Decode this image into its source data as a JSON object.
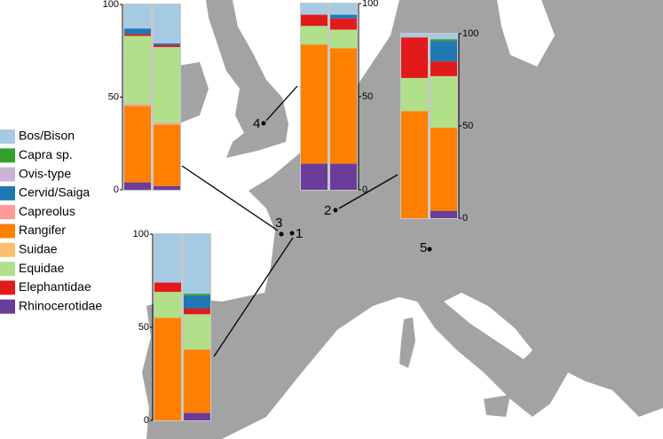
{
  "legend": [
    {
      "name": "Bos/Bison",
      "color": "#a6cae3"
    },
    {
      "name": "Capra sp.",
      "color": "#33a02c"
    },
    {
      "name": "Ovis-type",
      "color": "#cab2d6"
    },
    {
      "name": "Cervid/Saiga",
      "color": "#1f78b4"
    },
    {
      "name": "Capreolus",
      "color": "#fb9a99"
    },
    {
      "name": "Rangifer",
      "color": "#ff7f00"
    },
    {
      "name": "Suidae",
      "color": "#fdbf6f"
    },
    {
      "name": "Equidae",
      "color": "#b2df8a"
    },
    {
      "name": "Elephantidae",
      "color": "#e31a1c"
    },
    {
      "name": "Rhinocerotidae",
      "color": "#6a3d9a"
    }
  ],
  "sites": [
    "1",
    "2",
    "3",
    "4",
    "5"
  ],
  "chart_data": [
    {
      "type": "bar",
      "stacked": true,
      "ylim": [
        0,
        100
      ],
      "yticks": [
        0,
        50,
        100
      ],
      "series": [
        {
          "values": [
            13,
            21
          ]
        },
        {
          "values": [
            0,
            0
          ]
        },
        {
          "values": [
            0,
            0
          ]
        },
        {
          "values": [
            3,
            1
          ]
        },
        {
          "values": [
            1,
            1
          ]
        },
        {
          "values": [
            41,
            33
          ]
        },
        {
          "values": [
            0,
            0
          ]
        },
        {
          "values": [
            37,
            41
          ]
        },
        {
          "values": [
            1,
            1
          ]
        },
        {
          "values": [
            4,
            2
          ]
        }
      ]
    },
    {
      "type": "bar",
      "stacked": true,
      "ylim": [
        0,
        100
      ],
      "yticks": [
        0,
        50,
        100
      ],
      "series": [
        {
          "values": [
            6,
            6
          ]
        },
        {
          "values": [
            0,
            0
          ]
        },
        {
          "values": [
            0,
            0
          ]
        },
        {
          "values": [
            0,
            2
          ]
        },
        {
          "values": [
            0,
            0
          ]
        },
        {
          "values": [
            64,
            62
          ]
        },
        {
          "values": [
            0,
            0
          ]
        },
        {
          "values": [
            10,
            10
          ]
        },
        {
          "values": [
            6,
            6
          ]
        },
        {
          "values": [
            14,
            14
          ]
        }
      ]
    },
    {
      "type": "bar",
      "stacked": true,
      "ylim": [
        0,
        100
      ],
      "yticks": [
        0,
        50,
        100
      ],
      "series": [
        {
          "values": [
            2,
            3
          ]
        },
        {
          "values": [
            0,
            1
          ]
        },
        {
          "values": [
            0,
            0
          ]
        },
        {
          "values": [
            0,
            11
          ]
        },
        {
          "values": [
            0,
            0
          ]
        },
        {
          "values": [
            58,
            45
          ]
        },
        {
          "values": [
            0,
            0
          ]
        },
        {
          "values": [
            18,
            28
          ]
        },
        {
          "values": [
            22,
            8
          ]
        },
        {
          "values": [
            0,
            4
          ]
        }
      ]
    },
    {
      "type": "bar",
      "stacked": true,
      "ylim": [
        0,
        100
      ],
      "yticks": [
        0,
        50,
        100
      ],
      "series": [
        {
          "values": [
            26,
            32
          ]
        },
        {
          "values": [
            0,
            1
          ]
        },
        {
          "values": [
            0,
            0
          ]
        },
        {
          "values": [
            0,
            7
          ]
        },
        {
          "values": [
            0,
            0
          ]
        },
        {
          "values": [
            55,
            34
          ]
        },
        {
          "values": [
            0,
            0
          ]
        },
        {
          "values": [
            14,
            19
          ]
        },
        {
          "values": [
            5,
            3
          ]
        },
        {
          "values": [
            0,
            4
          ]
        }
      ]
    }
  ]
}
